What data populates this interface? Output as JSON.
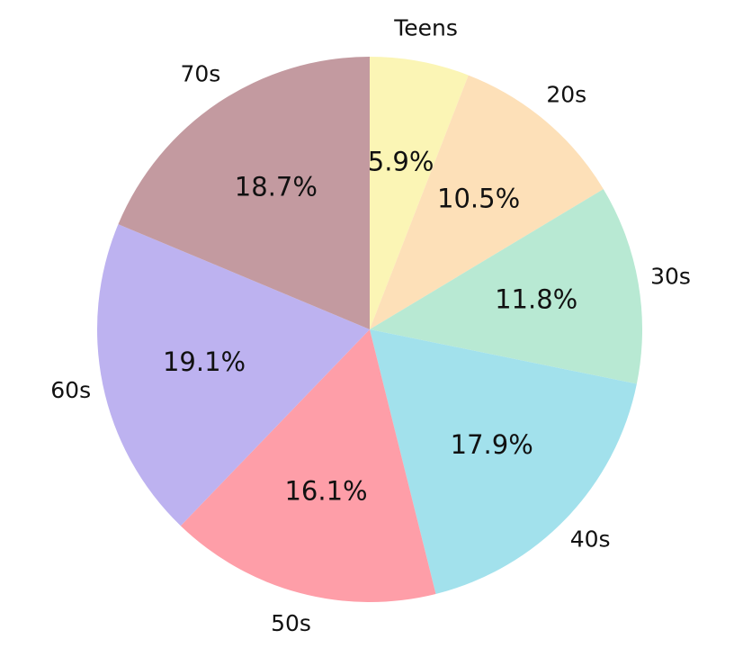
{
  "chart_data": {
    "type": "pie",
    "categories": [
      "Teens",
      "20s",
      "30s",
      "40s",
      "50s",
      "60s",
      "70s"
    ],
    "values": [
      5.9,
      10.5,
      11.8,
      17.9,
      16.1,
      19.1,
      18.7
    ],
    "value_labels": [
      "5.9%",
      "10.5%",
      "11.8%",
      "17.9%",
      "16.1%",
      "19.1%",
      "18.7%"
    ],
    "colors": [
      "#fbf5b5",
      "#fde0b8",
      "#b8e9d3",
      "#a2e1ec",
      "#fe9ea8",
      "#bdb2f0",
      "#c39aa0"
    ]
  }
}
